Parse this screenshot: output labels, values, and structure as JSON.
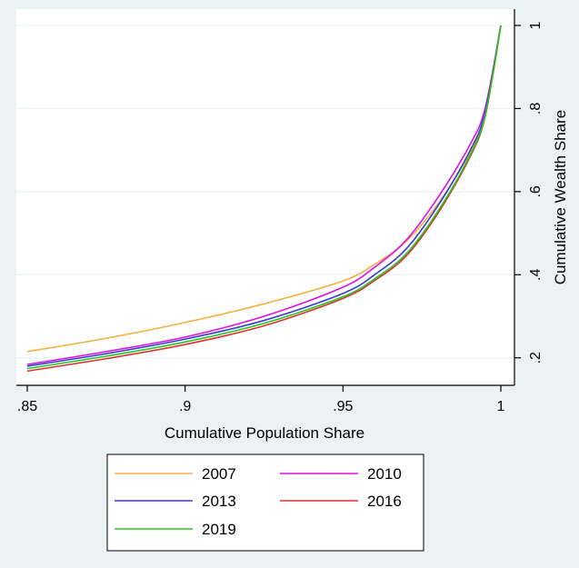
{
  "chart_data": {
    "type": "line",
    "xlabel": "Cumulative Population Share",
    "ylabel": "Cumulative Wealth Share",
    "xlim": [
      0.85,
      1.0
    ],
    "ylim": [
      0.16,
      1.0
    ],
    "x_ticks": [
      {
        "value": 0.85,
        "label": ".85"
      },
      {
        "value": 0.9,
        "label": ".9"
      },
      {
        "value": 0.95,
        "label": ".95"
      },
      {
        "value": 1.0,
        "label": "1"
      }
    ],
    "y_ticks": [
      {
        "value": 0.2,
        "label": ".2"
      },
      {
        "value": 0.4,
        "label": ".4"
      },
      {
        "value": 0.6,
        "label": ".6"
      },
      {
        "value": 0.8,
        "label": ".8"
      },
      {
        "value": 1.0,
        "label": "1"
      }
    ],
    "grid": true,
    "legend_position": "bottom",
    "x": [
      0.85,
      0.875,
      0.9,
      0.925,
      0.95,
      0.96,
      0.97,
      0.98,
      0.99,
      0.995,
      1.0
    ],
    "series": [
      {
        "name": "2007",
        "color": "#f5b041",
        "values": [
          0.215,
          0.247,
          0.285,
          0.33,
          0.385,
          0.425,
          0.48,
          0.57,
          0.69,
          0.78,
          1.0
        ]
      },
      {
        "name": "2010",
        "color": "#e010e0",
        "values": [
          0.184,
          0.215,
          0.25,
          0.3,
          0.37,
          0.418,
          0.483,
          0.585,
          0.71,
          0.8,
          1.0
        ]
      },
      {
        "name": "2013",
        "color": "#3a3ad0",
        "values": [
          0.18,
          0.21,
          0.245,
          0.29,
          0.355,
          0.4,
          0.462,
          0.565,
          0.695,
          0.79,
          1.0
        ]
      },
      {
        "name": "2016",
        "color": "#e03030",
        "values": [
          0.168,
          0.198,
          0.232,
          0.277,
          0.343,
          0.386,
          0.445,
          0.547,
          0.68,
          0.78,
          1.0
        ]
      },
      {
        "name": "2019",
        "color": "#22c822",
        "values": [
          0.174,
          0.204,
          0.238,
          0.283,
          0.347,
          0.39,
          0.45,
          0.552,
          0.684,
          0.782,
          1.0
        ]
      }
    ]
  }
}
